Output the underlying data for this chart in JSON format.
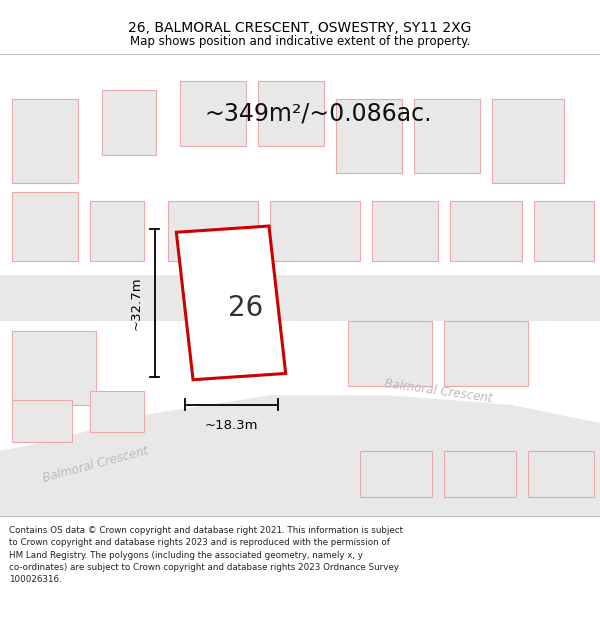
{
  "title_line1": "26, BALMORAL CRESCENT, OSWESTRY, SY11 2XG",
  "title_line2": "Map shows position and indicative extent of the property.",
  "area_text": "~349m²/~0.086ac.",
  "dim_width": "~18.3m",
  "dim_height": "~32.7m",
  "plot_number": "26",
  "footer_text": "Contains OS data © Crown copyright and database right 2021. This information is subject to Crown copyright and database rights 2023 and is reproduced with the permission of HM Land Registry. The polygons (including the associated geometry, namely x, y co-ordinates) are subject to Crown copyright and database rights 2023 Ordnance Survey 100026316.",
  "background_color": "#ffffff",
  "map_bg_color": "#ffffff",
  "road_fill": "#e8e8e8",
  "plot_outline_color": "#cc0000",
  "building_fill": "#e8e8e8",
  "building_edge": "#e8aaaa",
  "road_label_color": "#bbbbbb",
  "dim_color": "#000000",
  "area_text_color": "#111111",
  "plot_number_color": "#333333",
  "title_color": "#000000",
  "footer_color": "#222222"
}
